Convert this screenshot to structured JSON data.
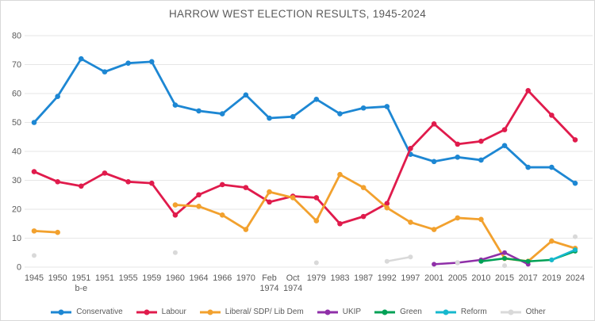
{
  "title": "HARROW WEST ELECTION RESULTS, 1945-2024",
  "colors": {
    "background": "#ffffff",
    "frame_border": "#d9d9d9",
    "gridline": "#e6e6e6",
    "axis_text": "#595959",
    "title_text": "#5a5a5a"
  },
  "chart_data": {
    "type": "line",
    "title": "HARROW WEST ELECTION RESULTS, 1945-2024",
    "xlabel": "",
    "ylabel": "",
    "ylim": [
      0,
      80
    ],
    "y_tick_step": 10,
    "grid": true,
    "legend_position": "bottom",
    "categories": [
      "1945",
      "1950",
      "1951\nb-e",
      "1951",
      "1955",
      "1959",
      "1960",
      "1964",
      "1966",
      "1970",
      "Feb\n1974",
      "Oct\n1974",
      "1979",
      "1983",
      "1987",
      "1992",
      "1997",
      "2001",
      "2005",
      "2010",
      "2015",
      "2017",
      "2019",
      "2024"
    ],
    "series": [
      {
        "name": "Conservative",
        "color": "#1d87d3",
        "values": [
          50,
          59,
          72,
          67.5,
          70.5,
          71,
          56,
          54,
          53,
          59.5,
          51.5,
          52,
          58,
          53,
          55,
          55.5,
          39,
          36.5,
          38,
          37,
          42,
          34.5,
          34.5,
          29
        ]
      },
      {
        "name": "Labour",
        "color": "#e01b4c",
        "values": [
          33,
          29.5,
          28,
          32.5,
          29.5,
          29,
          18,
          25,
          28.5,
          27.5,
          22.5,
          24.5,
          24,
          15,
          17.5,
          22,
          41,
          49.5,
          42.5,
          43.5,
          47.5,
          61,
          52.5,
          44
        ]
      },
      {
        "name": "Liberal/ SDP/ Lib Dem",
        "color": "#f2a12e",
        "values": [
          12.5,
          12,
          null,
          null,
          null,
          null,
          21.5,
          21,
          18,
          13,
          26,
          24,
          16,
          32,
          27.5,
          20.5,
          15.5,
          13,
          17,
          16.5,
          3,
          2,
          9,
          6.5
        ]
      },
      {
        "name": "UKIP",
        "color": "#8f2fa8",
        "values": [
          null,
          null,
          null,
          null,
          null,
          null,
          null,
          null,
          null,
          null,
          null,
          null,
          null,
          null,
          null,
          null,
          null,
          1,
          1.5,
          2.5,
          5,
          1,
          null,
          null
        ]
      },
      {
        "name": "Green",
        "color": "#00a156",
        "values": [
          null,
          null,
          null,
          null,
          null,
          null,
          null,
          null,
          null,
          null,
          null,
          null,
          null,
          null,
          null,
          null,
          null,
          null,
          null,
          2,
          3,
          2,
          2.5,
          5.5
        ]
      },
      {
        "name": "Reform",
        "color": "#16b8ce",
        "values": [
          null,
          null,
          null,
          null,
          null,
          null,
          null,
          null,
          null,
          null,
          null,
          null,
          null,
          null,
          null,
          null,
          null,
          null,
          null,
          null,
          null,
          null,
          2.5,
          6
        ]
      },
      {
        "name": "Other",
        "color": "#d9d9d9",
        "values": [
          4,
          null,
          null,
          null,
          null,
          null,
          5,
          null,
          null,
          null,
          null,
          null,
          1.5,
          null,
          null,
          2,
          3.5,
          null,
          1.5,
          null,
          0.5,
          null,
          null,
          10.5
        ]
      }
    ]
  }
}
